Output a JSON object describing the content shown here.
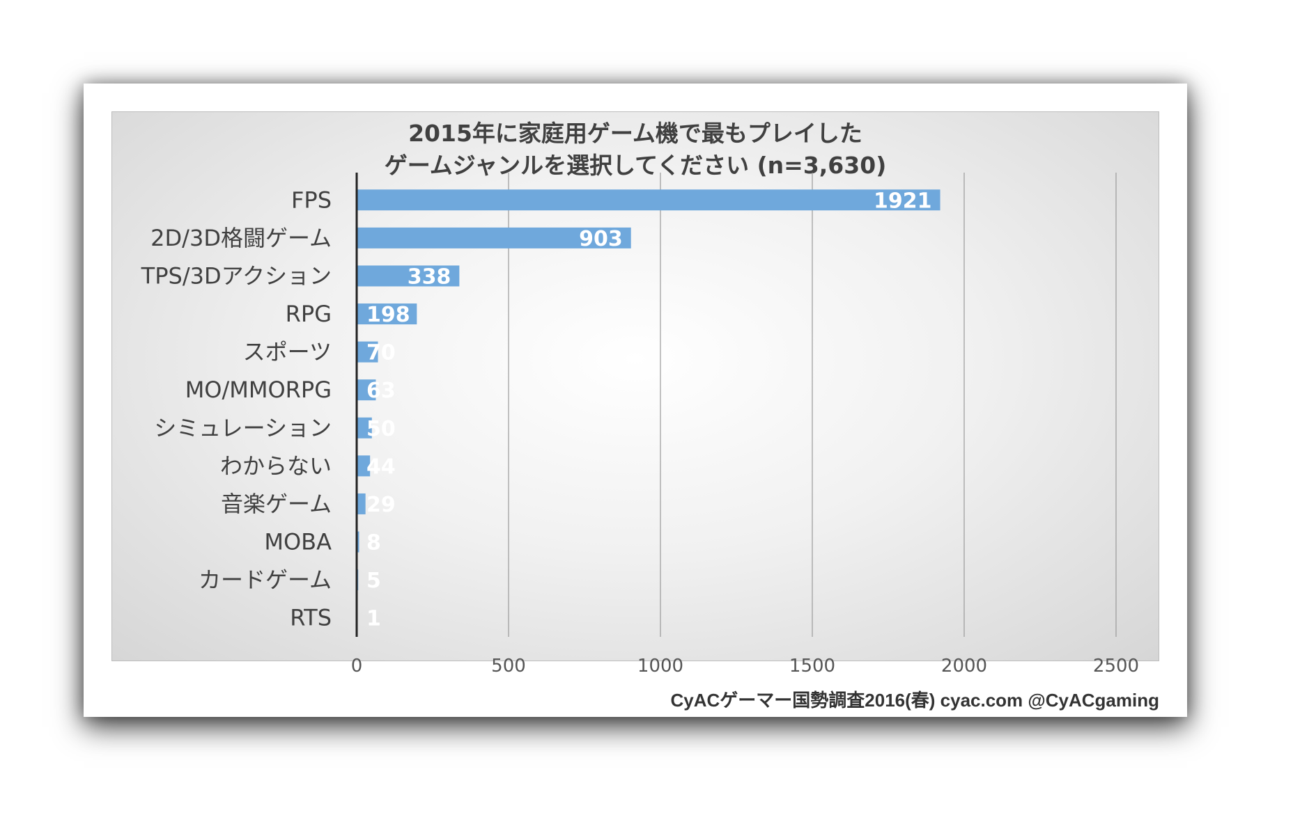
{
  "chart_data": {
    "type": "bar",
    "orientation": "horizontal",
    "title_line1": "2015年に家庭用ゲーム機で最もプレイした",
    "title_line2": "ゲームジャンルを選択してください (n=3,630)",
    "categories": [
      "FPS",
      "2D/3D格闘ゲーム",
      "TPS/3Dアクション",
      "RPG",
      "スポーツ",
      "MO/MMORPG",
      "シミュレーション",
      "わからない",
      "音楽ゲーム",
      "MOBA",
      "カードゲーム",
      "RTS"
    ],
    "values": [
      1921,
      903,
      338,
      198,
      70,
      63,
      50,
      44,
      29,
      8,
      5,
      1
    ],
    "xlim": [
      0,
      2500
    ],
    "xticks": [
      0,
      500,
      1000,
      1500,
      2000,
      2500
    ],
    "bar_color": "#6fa8dc",
    "grid": "vertical",
    "legend": "none"
  },
  "footer": "CyACゲーマー国勢調査2016(春) cyac.com @CyACgaming"
}
